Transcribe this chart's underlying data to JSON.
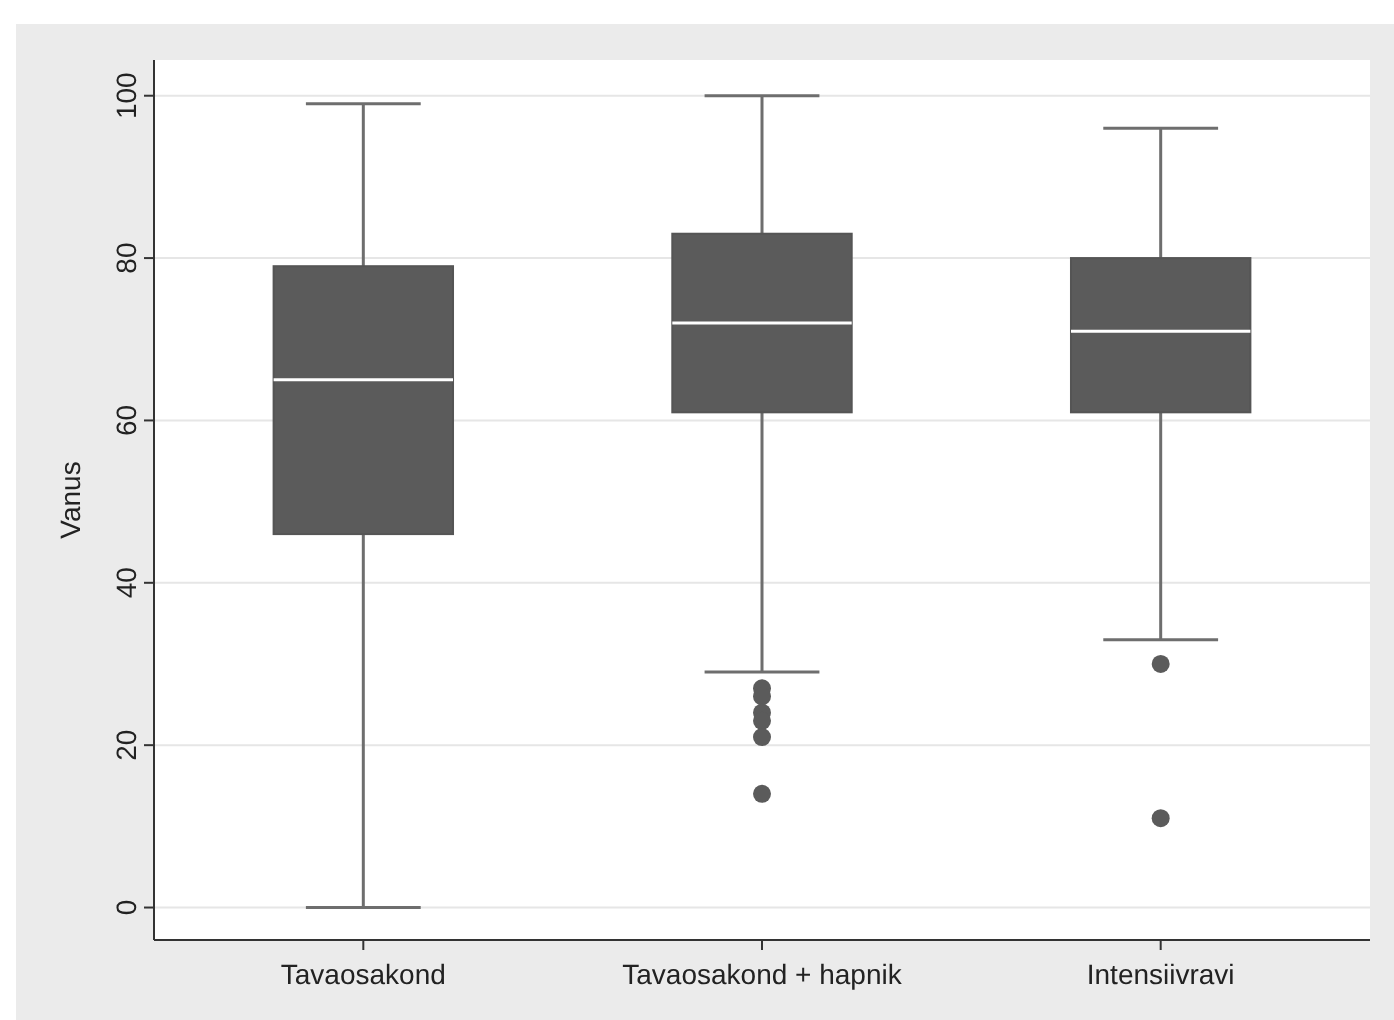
{
  "chart_data": {
    "type": "box",
    "ylabel": "Vanus",
    "categories": [
      "Tavaosakond",
      "Tavaosakond + hapnik",
      "Intensiivravi"
    ],
    "color": "#5b5b5b",
    "boxes": [
      {
        "low": 0,
        "q1": 46,
        "median": 65,
        "q3": 79,
        "high": 99
      },
      {
        "low": 29,
        "q1": 61,
        "median": 72,
        "q3": 83,
        "high": 100,
        "outliers": [
          27,
          26,
          24,
          23,
          21,
          14
        ]
      },
      {
        "low": 33,
        "q1": 61,
        "median": 71,
        "q3": 80,
        "high": 96,
        "outliers": [
          30,
          11
        ]
      }
    ],
    "ylim": [
      -4,
      104.4
    ],
    "yticks": [
      0,
      20,
      40,
      60,
      80,
      100
    ],
    "grid": "y"
  }
}
